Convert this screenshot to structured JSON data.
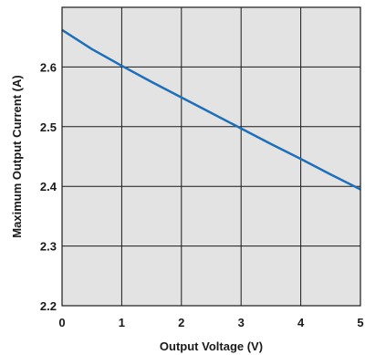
{
  "chart_data": {
    "type": "line",
    "title": "",
    "xlabel": "Output Voltage (V)",
    "ylabel": "Maximum Output Current (A)",
    "xlim": [
      0,
      5
    ],
    "ylim": [
      2.2,
      2.7
    ],
    "x_ticks": [
      "0",
      "1",
      "2",
      "3",
      "4",
      "5"
    ],
    "y_ticks": [
      "2.2",
      "2.3",
      "2.4",
      "2.5",
      "2.6"
    ],
    "grid": true,
    "legend": "none",
    "colors": {
      "plot_background": "#e3e3e3",
      "grid": "#1a1a1a",
      "line": "#1f6fb8"
    },
    "series": [
      {
        "x": [
          0,
          0.5,
          1,
          1.5,
          2,
          2.5,
          3,
          3.5,
          4,
          4.5,
          5
        ],
        "y": [
          2.662,
          2.63,
          2.602,
          2.575,
          2.549,
          2.523,
          2.497,
          2.471,
          2.446,
          2.42,
          2.395
        ]
      }
    ]
  }
}
